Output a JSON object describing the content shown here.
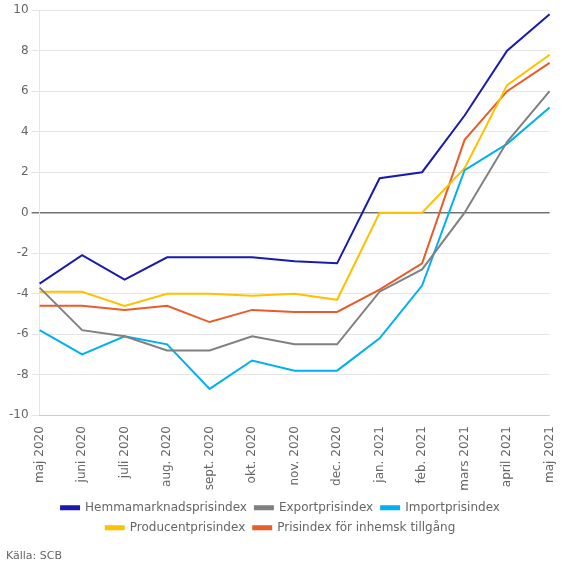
{
  "chart_data": {
    "type": "line",
    "categories": [
      "maj 2020",
      "juni 2020",
      "juli 2020",
      "aug. 2020",
      "sept. 2020",
      "okt. 2020",
      "nov. 2020",
      "dec. 2020",
      "jan. 2021",
      "feb. 2021",
      "mars 2021",
      "april 2021",
      "maj 2021"
    ],
    "series": [
      {
        "name": "Hemmamarknadsprisindex",
        "color": "#1a1aad",
        "values": [
          -3.5,
          -2.1,
          -3.3,
          -2.2,
          -2.2,
          -2.2,
          -2.4,
          -2.5,
          1.7,
          2.0,
          4.8,
          8.0,
          9.8
        ]
      },
      {
        "name": "Exportprisindex",
        "color": "#808080",
        "values": [
          -3.7,
          -5.8,
          -6.1,
          -6.8,
          -6.8,
          -6.1,
          -6.5,
          -6.5,
          -3.9,
          -2.8,
          0.0,
          3.5,
          6.0
        ]
      },
      {
        "name": "Importprisindex",
        "color": "#00b0f0",
        "values": [
          -5.8,
          -7.0,
          -6.1,
          -6.5,
          -8.7,
          -7.3,
          -7.8,
          -7.8,
          -6.2,
          -3.6,
          2.1,
          3.4,
          5.2
        ]
      },
      {
        "name": "Producentprisindex",
        "color": "#ffc000",
        "values": [
          -3.9,
          -3.9,
          -4.6,
          -4.0,
          -4.0,
          -4.1,
          -4.0,
          -4.3,
          0.0,
          0.0,
          2.2,
          6.3,
          7.8
        ]
      },
      {
        "name": "Prisindex för inhemsk tillgång",
        "color": "#e85c2a",
        "values": [
          -4.6,
          -4.6,
          -4.8,
          -4.6,
          -5.4,
          -4.8,
          -4.9,
          -4.9,
          -3.8,
          -2.5,
          3.6,
          6.0,
          7.4
        ]
      }
    ],
    "ylim": [
      -10,
      10
    ],
    "yticks": [
      -10,
      -8,
      -6,
      -4,
      -2,
      0,
      2,
      4,
      6,
      8,
      10
    ],
    "grid": true,
    "legend": "bottom",
    "annotations": [
      "Källa: SCB"
    ]
  }
}
